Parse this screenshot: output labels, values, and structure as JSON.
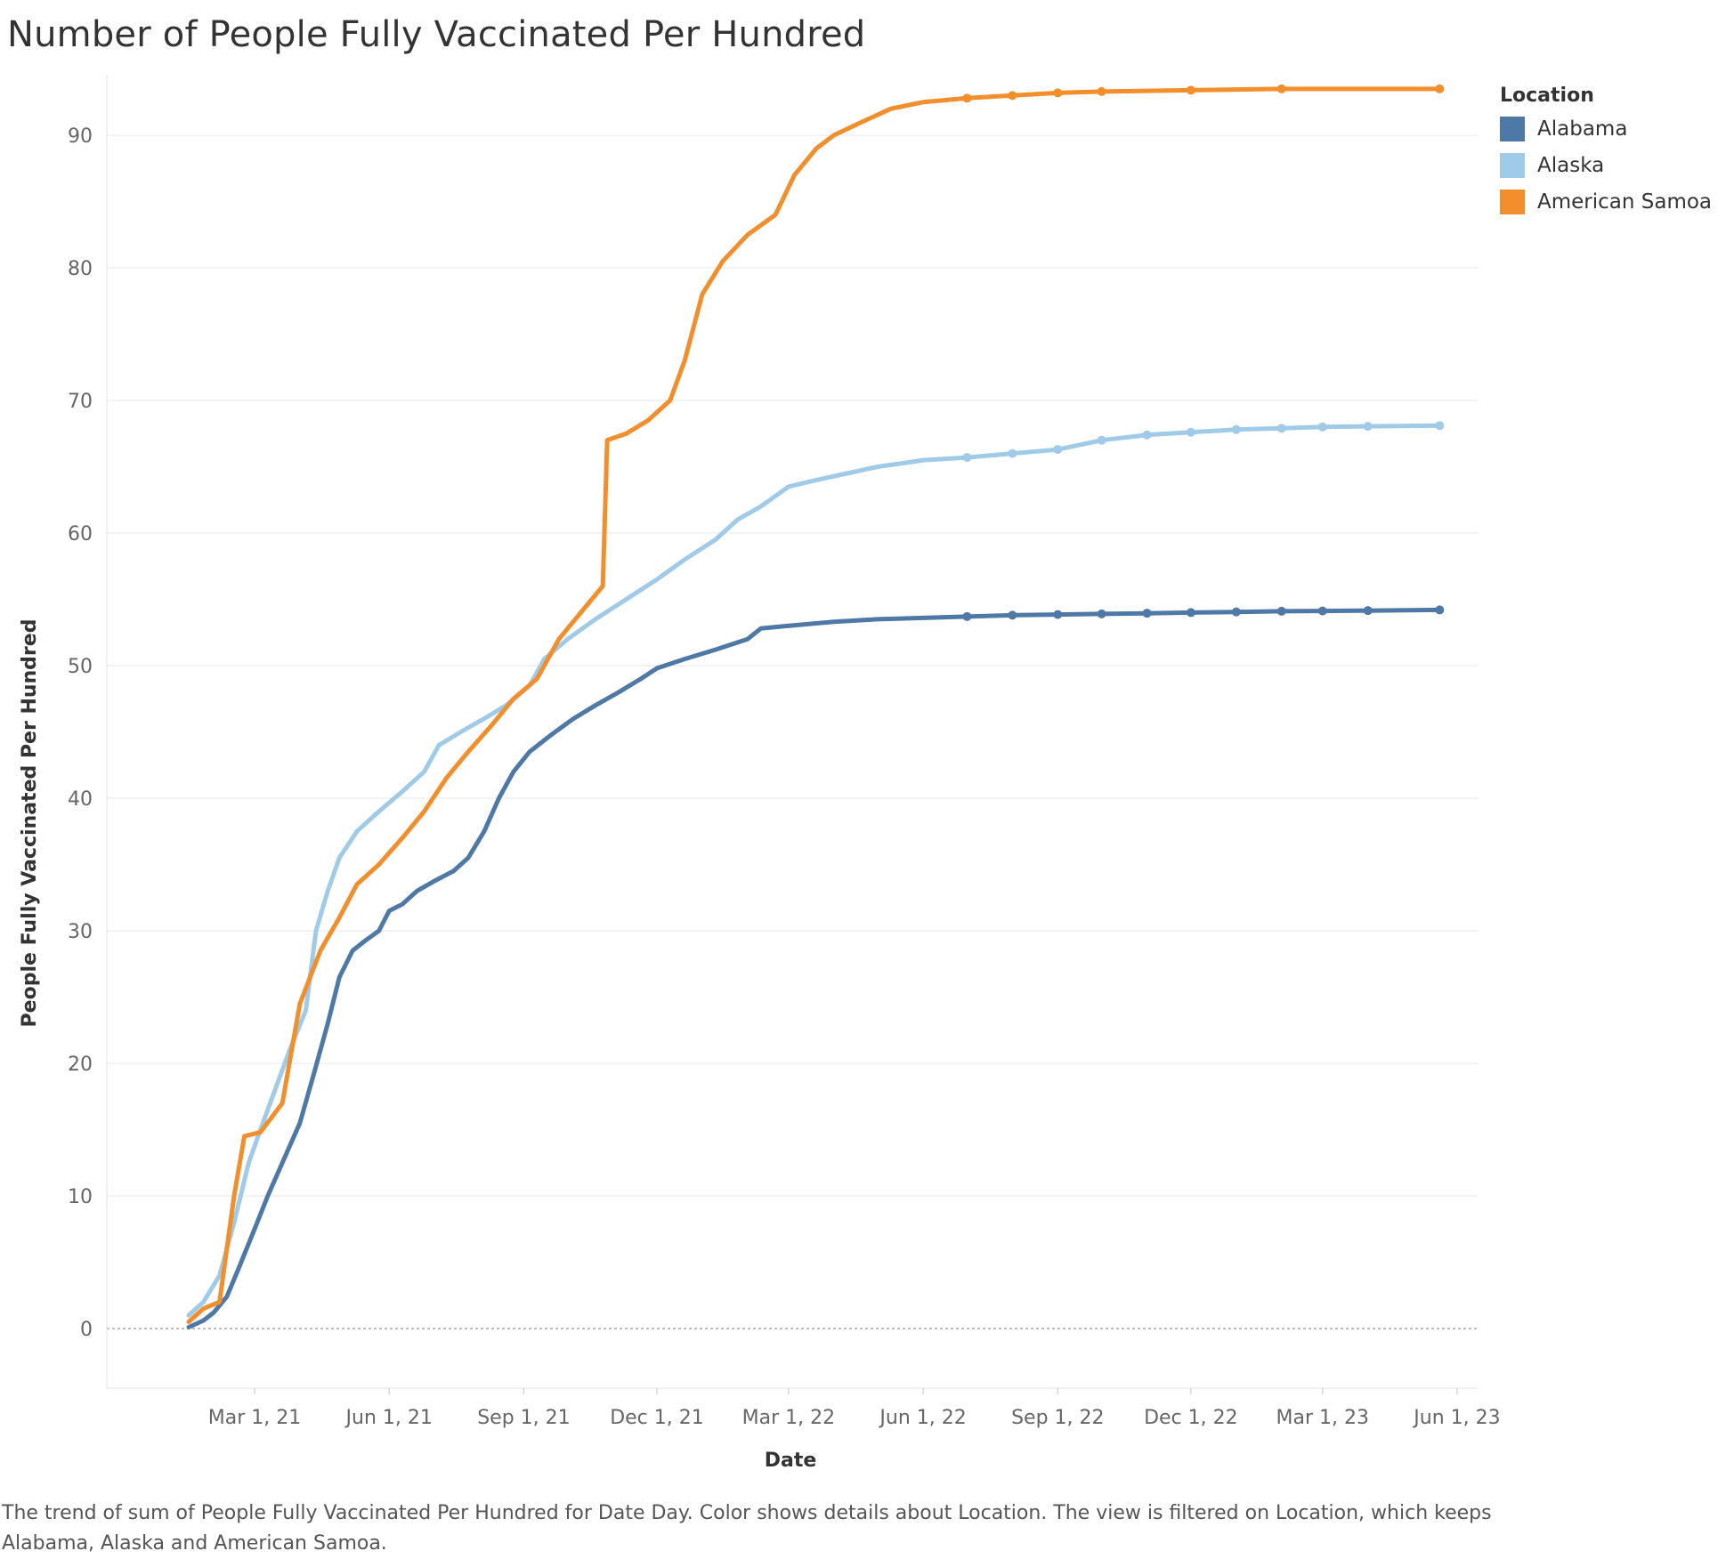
{
  "title": "Number of People Fully Vaccinated Per Hundred",
  "caption": "The trend of sum of People Fully Vaccinated Per Hundred for Date Day.  Color shows details about Location. The view is filtered on Location, which keeps Alabama, Alaska and American Samoa.",
  "legend": {
    "title": "Location",
    "items": [
      {
        "label": "Alabama",
        "color": "#4e79a7"
      },
      {
        "label": "Alaska",
        "color": "#a0cbe8"
      },
      {
        "label": "American Samoa",
        "color": "#f28e2b"
      }
    ]
  },
  "chart_data": {
    "type": "line",
    "title": "Number of People Fully Vaccinated Per Hundred",
    "xlabel": "Date",
    "ylabel": "People Fully Vaccinated Per Hundred",
    "x_type": "date",
    "xlim": [
      "2020-11-20",
      "2023-06-15"
    ],
    "ylim": [
      -4.5,
      94.5
    ],
    "y_ticks": [
      0,
      10,
      20,
      30,
      40,
      50,
      60,
      70,
      80,
      90
    ],
    "x_ticks": [
      {
        "date": "2021-03-01",
        "label": "Mar 1, 21"
      },
      {
        "date": "2021-06-01",
        "label": "Jun 1, 21"
      },
      {
        "date": "2021-09-01",
        "label": "Sep 1, 21"
      },
      {
        "date": "2021-12-01",
        "label": "Dec 1, 21"
      },
      {
        "date": "2022-03-01",
        "label": "Mar 1, 22"
      },
      {
        "date": "2022-06-01",
        "label": "Jun 1, 22"
      },
      {
        "date": "2022-09-01",
        "label": "Sep 1, 22"
      },
      {
        "date": "2022-12-01",
        "label": "Dec 1, 22"
      },
      {
        "date": "2023-03-01",
        "label": "Mar 1, 23"
      },
      {
        "date": "2023-06-01",
        "label": "Jun 1, 23"
      }
    ],
    "grid": true,
    "legend_position": "top-right",
    "series": [
      {
        "name": "Alabama",
        "color": "#4e79a7",
        "points": [
          [
            "2021-01-15",
            0.1
          ],
          [
            "2021-01-25",
            0.6
          ],
          [
            "2021-02-01",
            1.2
          ],
          [
            "2021-02-10",
            2.4
          ],
          [
            "2021-02-18",
            4.5
          ],
          [
            "2021-03-01",
            7.5
          ],
          [
            "2021-03-10",
            10.0
          ],
          [
            "2021-03-20",
            12.5
          ],
          [
            "2021-04-01",
            15.5
          ],
          [
            "2021-04-10",
            19.0
          ],
          [
            "2021-04-20",
            23.0
          ],
          [
            "2021-04-28",
            26.5
          ],
          [
            "2021-05-07",
            28.5
          ],
          [
            "2021-05-15",
            29.2
          ],
          [
            "2021-05-25",
            30.0
          ],
          [
            "2021-06-01",
            31.5
          ],
          [
            "2021-06-10",
            32.0
          ],
          [
            "2021-06-20",
            33.0
          ],
          [
            "2021-07-01",
            33.7
          ],
          [
            "2021-07-15",
            34.5
          ],
          [
            "2021-07-25",
            35.5
          ],
          [
            "2021-08-05",
            37.5
          ],
          [
            "2021-08-15",
            40.0
          ],
          [
            "2021-08-25",
            42.0
          ],
          [
            "2021-09-05",
            43.5
          ],
          [
            "2021-09-20",
            44.8
          ],
          [
            "2021-10-05",
            46.0
          ],
          [
            "2021-10-20",
            47.0
          ],
          [
            "2021-11-05",
            48.0
          ],
          [
            "2021-11-20",
            49.0
          ],
          [
            "2021-12-01",
            49.8
          ],
          [
            "2021-12-20",
            50.5
          ],
          [
            "2022-01-10",
            51.2
          ],
          [
            "2022-02-01",
            52.0
          ],
          [
            "2022-02-10",
            52.8
          ],
          [
            "2022-03-01",
            53.0
          ],
          [
            "2022-04-01",
            53.3
          ],
          [
            "2022-05-01",
            53.5
          ],
          [
            "2022-06-01",
            53.6
          ],
          [
            "2022-07-01",
            53.7
          ],
          [
            "2022-08-01",
            53.8
          ],
          [
            "2022-09-01",
            53.85
          ],
          [
            "2022-10-01",
            53.9
          ],
          [
            "2022-11-01",
            53.95
          ],
          [
            "2022-12-01",
            54.0
          ],
          [
            "2023-01-01",
            54.05
          ],
          [
            "2023-02-01",
            54.1
          ],
          [
            "2023-03-01",
            54.12
          ],
          [
            "2023-04-01",
            54.15
          ],
          [
            "2023-05-20",
            54.2
          ]
        ]
      },
      {
        "name": "Alaska",
        "color": "#a0cbe8",
        "points": [
          [
            "2021-01-15",
            1.0
          ],
          [
            "2021-01-25",
            2.0
          ],
          [
            "2021-02-05",
            4.0
          ],
          [
            "2021-02-15",
            8.0
          ],
          [
            "2021-02-25",
            12.5
          ],
          [
            "2021-03-05",
            15.0
          ],
          [
            "2021-03-15",
            18.0
          ],
          [
            "2021-03-25",
            21.0
          ],
          [
            "2021-04-05",
            24.0
          ],
          [
            "2021-04-12",
            30.0
          ],
          [
            "2021-04-20",
            33.0
          ],
          [
            "2021-04-28",
            35.5
          ],
          [
            "2021-05-10",
            37.5
          ],
          [
            "2021-05-25",
            39.0
          ],
          [
            "2021-06-10",
            40.5
          ],
          [
            "2021-06-25",
            42.0
          ],
          [
            "2021-07-05",
            44.0
          ],
          [
            "2021-07-20",
            45.0
          ],
          [
            "2021-08-05",
            46.0
          ],
          [
            "2021-08-20",
            47.0
          ],
          [
            "2021-09-05",
            48.5
          ],
          [
            "2021-09-15",
            50.5
          ],
          [
            "2021-10-01",
            52.0
          ],
          [
            "2021-10-20",
            53.5
          ],
          [
            "2021-11-10",
            55.0
          ],
          [
            "2021-12-01",
            56.5
          ],
          [
            "2021-12-20",
            58.0
          ],
          [
            "2022-01-10",
            59.5
          ],
          [
            "2022-01-25",
            61.0
          ],
          [
            "2022-02-10",
            62.0
          ],
          [
            "2022-03-01",
            63.5
          ],
          [
            "2022-03-20",
            64.0
          ],
          [
            "2022-04-10",
            64.5
          ],
          [
            "2022-05-01",
            65.0
          ],
          [
            "2022-05-20",
            65.3
          ],
          [
            "2022-06-01",
            65.5
          ],
          [
            "2022-07-01",
            65.7
          ],
          [
            "2022-08-01",
            66.0
          ],
          [
            "2022-09-01",
            66.3
          ],
          [
            "2022-10-01",
            67.0
          ],
          [
            "2022-11-01",
            67.4
          ],
          [
            "2022-12-01",
            67.6
          ],
          [
            "2023-01-01",
            67.8
          ],
          [
            "2023-02-01",
            67.9
          ],
          [
            "2023-03-01",
            68.0
          ],
          [
            "2023-04-01",
            68.05
          ],
          [
            "2023-05-20",
            68.1
          ]
        ]
      },
      {
        "name": "American Samoa",
        "color": "#f28e2b",
        "points": [
          [
            "2021-01-15",
            0.5
          ],
          [
            "2021-01-25",
            1.5
          ],
          [
            "2021-02-05",
            2.0
          ],
          [
            "2021-02-15",
            10.0
          ],
          [
            "2021-02-22",
            14.5
          ],
          [
            "2021-03-05",
            14.8
          ],
          [
            "2021-03-20",
            17.0
          ],
          [
            "2021-04-01",
            24.5
          ],
          [
            "2021-04-15",
            28.5
          ],
          [
            "2021-04-28",
            31.0
          ],
          [
            "2021-05-10",
            33.5
          ],
          [
            "2021-05-25",
            35.0
          ],
          [
            "2021-06-10",
            37.0
          ],
          [
            "2021-06-25",
            39.0
          ],
          [
            "2021-07-10",
            41.5
          ],
          [
            "2021-07-25",
            43.5
          ],
          [
            "2021-08-10",
            45.5
          ],
          [
            "2021-08-25",
            47.5
          ],
          [
            "2021-09-10",
            49.0
          ],
          [
            "2021-09-25",
            52.0
          ],
          [
            "2021-10-10",
            54.0
          ],
          [
            "2021-10-25",
            56.0
          ],
          [
            "2021-10-28",
            67.0
          ],
          [
            "2021-11-10",
            67.5
          ],
          [
            "2021-11-25",
            68.5
          ],
          [
            "2021-12-10",
            70.0
          ],
          [
            "2021-12-20",
            73.0
          ],
          [
            "2022-01-01",
            78.0
          ],
          [
            "2022-01-15",
            80.5
          ],
          [
            "2022-02-01",
            82.5
          ],
          [
            "2022-02-20",
            84.0
          ],
          [
            "2022-03-05",
            87.0
          ],
          [
            "2022-03-20",
            89.0
          ],
          [
            "2022-04-01",
            90.0
          ],
          [
            "2022-04-20",
            91.0
          ],
          [
            "2022-05-10",
            92.0
          ],
          [
            "2022-06-01",
            92.5
          ],
          [
            "2022-07-01",
            92.8
          ],
          [
            "2022-08-01",
            93.0
          ],
          [
            "2022-09-01",
            93.2
          ],
          [
            "2022-10-01",
            93.3
          ],
          [
            "2022-12-01",
            93.4
          ],
          [
            "2023-02-01",
            93.5
          ],
          [
            "2023-05-20",
            93.5
          ]
        ]
      }
    ]
  }
}
